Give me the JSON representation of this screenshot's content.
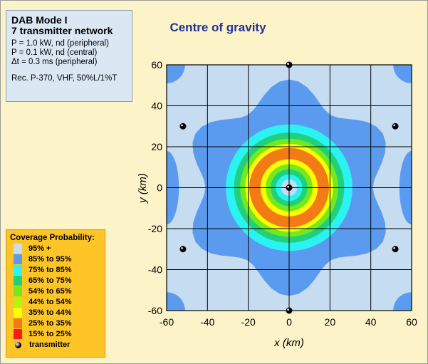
{
  "info": {
    "title1": "DAB Mode I",
    "title2": "7 transmitter network",
    "p1": "P = 1.0 kW, nd (peripheral)",
    "p2": "P = 0.1 kW, nd (central)",
    "p3": "Δt = 0.3 ms (peripheral)",
    "p4": "Rec. P-370, VHF, 50%L/1%T"
  },
  "legend": {
    "title": "Coverage Probability:",
    "items": [
      {
        "label": "95% +",
        "color": "#c6dcf0"
      },
      {
        "label": "85% to 95%",
        "color": "#5b9bef"
      },
      {
        "label": "75% to 85%",
        "color": "#2cf3f3"
      },
      {
        "label": "65% to 75%",
        "color": "#22d07c"
      },
      {
        "label": "54% to 65%",
        "color": "#74ea1c"
      },
      {
        "label": "44% to 54%",
        "color": "#b4f50e"
      },
      {
        "label": "35% to 44%",
        "color": "#ffff00"
      },
      {
        "label": "25% to 35%",
        "color": "#f37b16"
      },
      {
        "label": "15% to 25%",
        "color": "#ff1a1a"
      }
    ],
    "transmitter_label": "transmitter"
  },
  "chart_data": {
    "type": "heatmap",
    "title": "Centre of gravity",
    "xlabel": "x (km)",
    "ylabel": "y (km)",
    "xlim": [
      -60,
      60
    ],
    "ylim": [
      -60,
      60
    ],
    "xticks": [
      -60,
      -40,
      -20,
      0,
      20,
      40,
      60
    ],
    "yticks": [
      -60,
      -40,
      -20,
      0,
      20,
      40,
      60
    ],
    "grid": true,
    "transmitters": [
      {
        "x": 0,
        "y": 0
      },
      {
        "x": 0,
        "y": 60
      },
      {
        "x": 0,
        "y": -60
      },
      {
        "x": -52,
        "y": 30
      },
      {
        "x": 52,
        "y": 30
      },
      {
        "x": -52,
        "y": -30
      },
      {
        "x": 52,
        "y": -30
      }
    ],
    "rings": [
      {
        "r": 36,
        "band": "85% to 95%"
      },
      {
        "r": 31,
        "band": "75% to 85%"
      },
      {
        "r": 27,
        "band": "65% to 75%"
      },
      {
        "r": 24,
        "band": "54% to 65%"
      },
      {
        "r": 21.5,
        "band": "35% to 44%"
      },
      {
        "r": 19.5,
        "band": "25% to 35%"
      },
      {
        "r": 14,
        "band": "35% to 44%"
      },
      {
        "r": 11.5,
        "band": "54% to 65%"
      },
      {
        "r": 9,
        "band": "65% to 75%"
      },
      {
        "r": 6.5,
        "band": "75% to 85%"
      },
      {
        "r": 4,
        "band": "95% +"
      }
    ]
  }
}
